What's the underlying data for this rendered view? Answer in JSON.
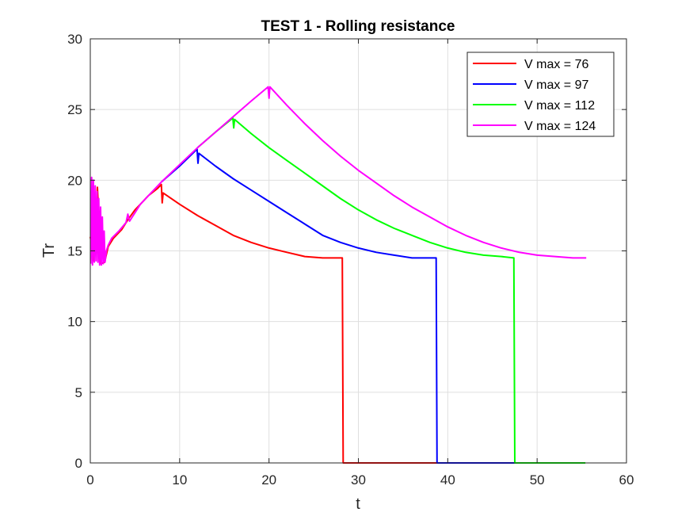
{
  "chart_data": {
    "type": "line",
    "title": "TEST 1 - Rolling resistance",
    "xlabel": "t",
    "ylabel": "Tr",
    "xlim": [
      0,
      60
    ],
    "ylim": [
      0,
      30
    ],
    "xticks": [
      0,
      10,
      20,
      30,
      40,
      50,
      60
    ],
    "yticks": [
      0,
      5,
      10,
      15,
      20,
      25,
      30
    ],
    "grid": true,
    "legend_position": "top-right",
    "series": [
      {
        "name": "V max = 76",
        "color": "#ff0000",
        "points": [
          [
            0,
            16
          ],
          [
            0.4,
            14.3
          ],
          [
            0.8,
            19.5
          ],
          [
            1.2,
            14.1
          ],
          [
            1.6,
            14.2
          ],
          [
            2,
            15.3
          ],
          [
            2.6,
            15.9
          ],
          [
            3.5,
            16.5
          ],
          [
            4.2,
            17.2
          ],
          [
            5,
            17.9
          ],
          [
            5.6,
            18.3
          ],
          [
            6.5,
            18.9
          ],
          [
            7.5,
            19.4
          ],
          [
            7.95,
            19.7
          ],
          [
            8.05,
            18.4
          ],
          [
            8.15,
            19.1
          ],
          [
            10,
            18.3
          ],
          [
            12,
            17.5
          ],
          [
            14,
            16.8
          ],
          [
            16,
            16.1
          ],
          [
            18,
            15.6
          ],
          [
            20,
            15.2
          ],
          [
            22,
            14.9
          ],
          [
            24,
            14.6
          ],
          [
            26,
            14.5
          ],
          [
            28.2,
            14.5
          ],
          [
            28.3,
            0
          ],
          [
            40,
            0
          ]
        ]
      },
      {
        "name": "V max = 97",
        "color": "#0000ff",
        "points": [
          [
            8,
            19.9
          ],
          [
            10,
            21.0
          ],
          [
            11.95,
            22.2
          ],
          [
            12.05,
            21.2
          ],
          [
            12.15,
            21.9
          ],
          [
            14,
            21.0
          ],
          [
            16,
            20.1
          ],
          [
            18,
            19.3
          ],
          [
            20,
            18.5
          ],
          [
            22,
            17.7
          ],
          [
            24,
            16.9
          ],
          [
            26,
            16.1
          ],
          [
            28,
            15.6
          ],
          [
            30,
            15.2
          ],
          [
            32,
            14.9
          ],
          [
            34,
            14.7
          ],
          [
            36,
            14.5
          ],
          [
            38.7,
            14.5
          ],
          [
            38.8,
            0
          ],
          [
            47.5,
            0
          ]
        ]
      },
      {
        "name": "V max = 112",
        "color": "#00ff00",
        "points": [
          [
            12,
            22.3
          ],
          [
            14,
            23.4
          ],
          [
            15.95,
            24.4
          ],
          [
            16.05,
            23.7
          ],
          [
            16.15,
            24.3
          ],
          [
            18,
            23.3
          ],
          [
            20,
            22.3
          ],
          [
            22,
            21.4
          ],
          [
            24,
            20.5
          ],
          [
            26,
            19.6
          ],
          [
            28,
            18.7
          ],
          [
            30,
            17.9
          ],
          [
            32,
            17.2
          ],
          [
            34,
            16.6
          ],
          [
            36,
            16.1
          ],
          [
            38,
            15.6
          ],
          [
            40,
            15.2
          ],
          [
            42,
            14.9
          ],
          [
            44,
            14.7
          ],
          [
            46,
            14.6
          ],
          [
            47.4,
            14.5
          ],
          [
            47.5,
            0
          ],
          [
            55.4,
            0
          ]
        ]
      },
      {
        "name": "V max = 124",
        "color": "#ff00ff",
        "points": [
          [
            0.05,
            14.1
          ],
          [
            0.15,
            20.2
          ],
          [
            0.25,
            14.0
          ],
          [
            0.35,
            20.0
          ],
          [
            0.45,
            14.2
          ],
          [
            0.55,
            19.6
          ],
          [
            0.65,
            14.3
          ],
          [
            0.75,
            19.2
          ],
          [
            0.85,
            14.2
          ],
          [
            0.95,
            18.7
          ],
          [
            1.05,
            14.0
          ],
          [
            1.15,
            18.1
          ],
          [
            1.25,
            14.0
          ],
          [
            1.35,
            17.4
          ],
          [
            1.45,
            14.1
          ],
          [
            1.55,
            16.4
          ],
          [
            1.65,
            14.2
          ],
          [
            1.8,
            15.0
          ],
          [
            2.0,
            15.4
          ],
          [
            2.4,
            15.9
          ],
          [
            3.2,
            16.4
          ],
          [
            4.0,
            17.0
          ],
          [
            4.2,
            17.6
          ],
          [
            4.4,
            17.1
          ],
          [
            5,
            17.7
          ],
          [
            5.6,
            18.3
          ],
          [
            6.5,
            18.9
          ],
          [
            8,
            19.9
          ],
          [
            10,
            21.1
          ],
          [
            12,
            22.3
          ],
          [
            14,
            23.4
          ],
          [
            16,
            24.5
          ],
          [
            18,
            25.6
          ],
          [
            19.9,
            26.6
          ],
          [
            20.0,
            25.8
          ],
          [
            20.1,
            26.6
          ],
          [
            22,
            25.3
          ],
          [
            24,
            24.0
          ],
          [
            26,
            22.8
          ],
          [
            28,
            21.7
          ],
          [
            30,
            20.7
          ],
          [
            32,
            19.8
          ],
          [
            34,
            18.9
          ],
          [
            36,
            18.1
          ],
          [
            38,
            17.4
          ],
          [
            40,
            16.7
          ],
          [
            42,
            16.1
          ],
          [
            44,
            15.6
          ],
          [
            46,
            15.2
          ],
          [
            48,
            14.9
          ],
          [
            50,
            14.7
          ],
          [
            52,
            14.6
          ],
          [
            54,
            14.5
          ],
          [
            55.5,
            14.5
          ]
        ]
      }
    ]
  }
}
